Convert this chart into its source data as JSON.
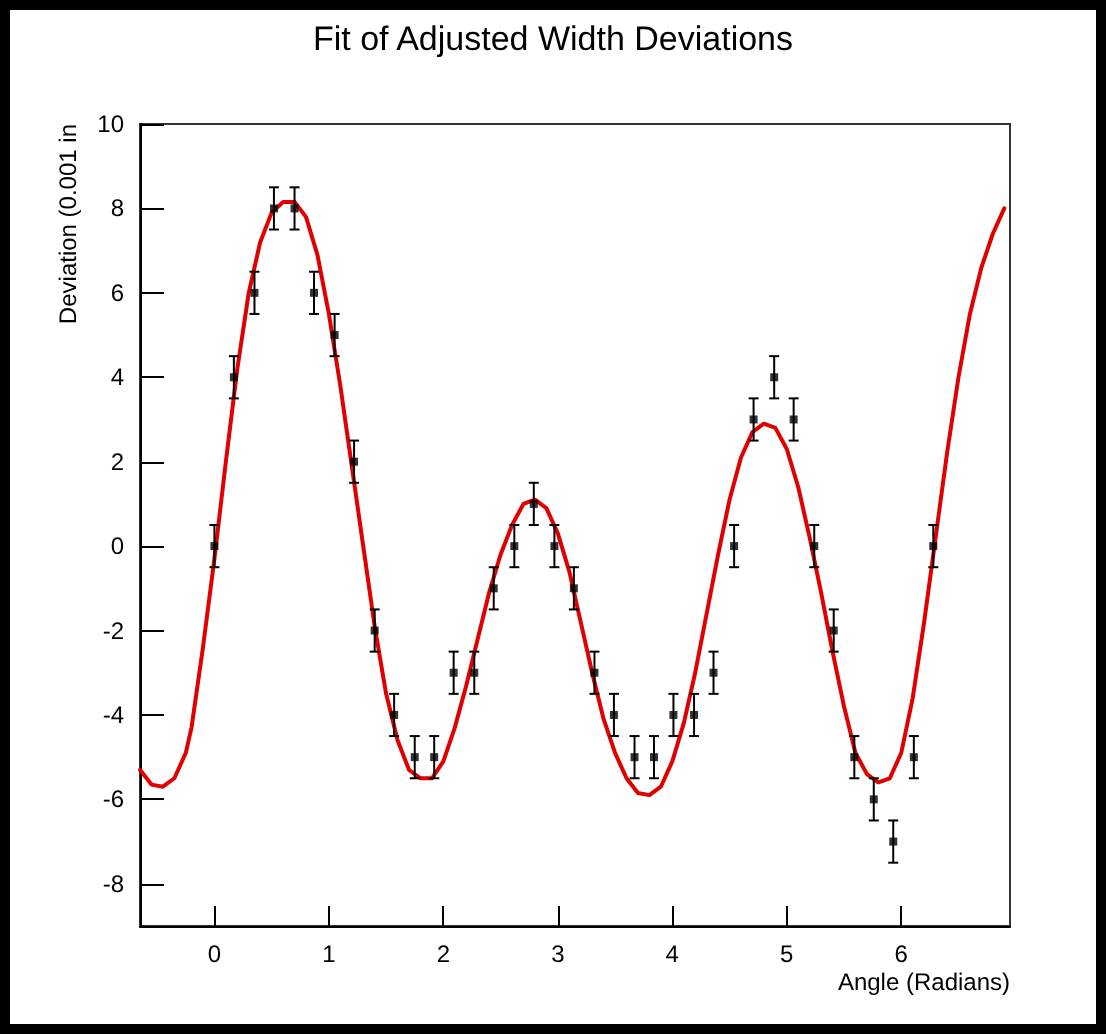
{
  "chart_data": {
    "type": "scatter",
    "title": "Fit of Adjusted Width Deviations",
    "xlabel": "Angle (Radians)",
    "ylabel": "Deviation (0.001 in",
    "xlim": [
      -0.65,
      6.95
    ],
    "xticks": [
      0,
      1,
      2,
      3,
      4,
      5,
      6
    ],
    "ylim": [
      -9,
      10
    ],
    "yticks": [
      -8,
      -6,
      -4,
      -2,
      0,
      2,
      4,
      6,
      8,
      10
    ],
    "grid": false,
    "series": [
      {
        "color": "#000000",
        "marker": "square",
        "x": [
          0,
          0.17,
          0.35,
          0.52,
          0.7,
          0.87,
          1.05,
          1.22,
          1.4,
          1.57,
          1.75,
          1.92,
          2.09,
          2.27,
          2.44,
          2.62,
          2.79,
          2.97,
          3.14,
          3.32,
          3.49,
          3.67,
          3.84,
          4.01,
          4.19,
          4.36,
          4.54,
          4.71,
          4.89,
          5.06,
          5.24,
          5.41,
          5.59,
          5.76,
          5.93,
          6.11,
          6.28
        ],
        "values": [
          0,
          4,
          6,
          8,
          8,
          6,
          5,
          2,
          -2,
          -4,
          -5,
          -5,
          -3,
          -3,
          -1,
          0,
          1,
          0,
          -1,
          -3,
          -4,
          -5,
          -5,
          -4,
          -4,
          -3,
          0,
          3,
          4,
          3,
          0,
          -2,
          -5,
          -6,
          -7,
          -5,
          0
        ],
        "errors": [
          0.5,
          0.5,
          0.5,
          0.5,
          0.5,
          0.5,
          0.5,
          0.5,
          0.5,
          0.5,
          0.5,
          0.5,
          0.5,
          0.5,
          0.5,
          0.5,
          0.5,
          0.5,
          0.5,
          0.5,
          0.5,
          0.5,
          0.5,
          0.5,
          0.5,
          0.5,
          0.5,
          0.5,
          0.5,
          0.5,
          0.5,
          0.5,
          0.5,
          0.5,
          0.5,
          0.5,
          0.5
        ]
      },
      {
        "type": "line",
        "color": "#e00000",
        "marker": "none",
        "line_style": "solid",
        "x": [
          -0.65,
          -0.55,
          -0.45,
          -0.35,
          -0.25,
          -0.2,
          -0.1,
          0,
          0.1,
          0.2,
          0.3,
          0.4,
          0.5,
          0.6,
          0.7,
          0.8,
          0.9,
          1.0,
          1.1,
          1.2,
          1.3,
          1.4,
          1.5,
          1.6,
          1.7,
          1.8,
          1.9,
          2.0,
          2.1,
          2.2,
          2.3,
          2.4,
          2.5,
          2.6,
          2.7,
          2.8,
          2.9,
          3.0,
          3.1,
          3.2,
          3.3,
          3.4,
          3.5,
          3.6,
          3.7,
          3.8,
          3.9,
          4.0,
          4.1,
          4.2,
          4.3,
          4.4,
          4.5,
          4.6,
          4.7,
          4.8,
          4.9,
          5.0,
          5.1,
          5.2,
          5.3,
          5.4,
          5.5,
          5.6,
          5.7,
          5.8,
          5.9,
          6.0,
          6.1,
          6.2,
          6.3,
          6.4,
          6.5,
          6.6,
          6.7,
          6.8,
          6.9
        ],
        "values": [
          -5.3,
          -5.65,
          -5.7,
          -5.5,
          -4.9,
          -4.3,
          -2.4,
          -0.3,
          2.0,
          4.2,
          6.0,
          7.2,
          7.9,
          8.15,
          8.15,
          7.8,
          6.9,
          5.5,
          3.8,
          1.9,
          0,
          -1.9,
          -3.5,
          -4.6,
          -5.3,
          -5.5,
          -5.5,
          -5.1,
          -4.3,
          -3.3,
          -2.2,
          -1.1,
          -0.2,
          0.5,
          1.0,
          1.1,
          0.9,
          0.3,
          -0.6,
          -1.8,
          -3.0,
          -4.1,
          -4.9,
          -5.5,
          -5.85,
          -5.9,
          -5.7,
          -5.1,
          -4.2,
          -3.0,
          -1.6,
          -0.2,
          1.1,
          2.1,
          2.7,
          2.9,
          2.8,
          2.3,
          1.4,
          0.2,
          -1.1,
          -2.5,
          -3.8,
          -4.9,
          -5.4,
          -5.6,
          -5.5,
          -4.9,
          -3.6,
          -1.8,
          0.2,
          2.2,
          4.0,
          5.5,
          6.6,
          7.4,
          8.0
        ]
      }
    ]
  }
}
